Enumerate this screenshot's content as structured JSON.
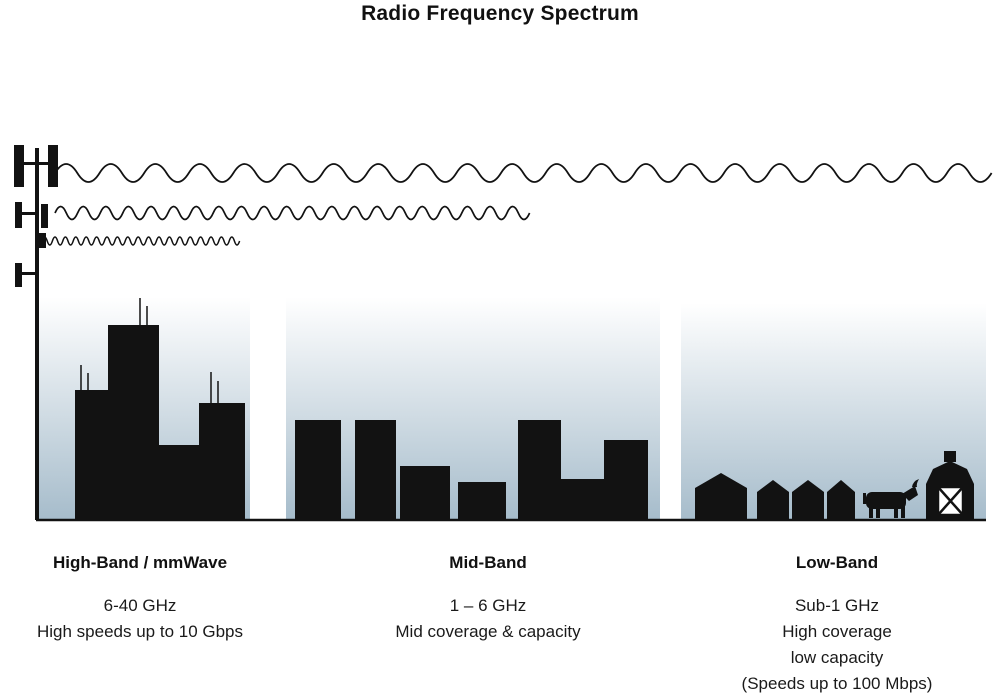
{
  "title": "Radio Frequency Spectrum",
  "bands": [
    {
      "name": "High-Band / mmWave",
      "frequency": "6-40 GHz",
      "lines": [
        "High speeds up to 10 Gbps"
      ]
    },
    {
      "name": "Mid-Band",
      "frequency": "1 – 6 GHz",
      "lines": [
        "Mid coverage & capacity"
      ]
    },
    {
      "name": "Low-Band",
      "frequency": "Sub-1 GHz",
      "lines": [
        "High coverage",
        "low capacity",
        "(Speeds up to 100 Mbps)"
      ]
    }
  ],
  "colors": {
    "silhouette": "#121212",
    "sky_top": "#ffffff",
    "sky_bottom": "#a6bccb",
    "text": "#1a1a1a"
  }
}
